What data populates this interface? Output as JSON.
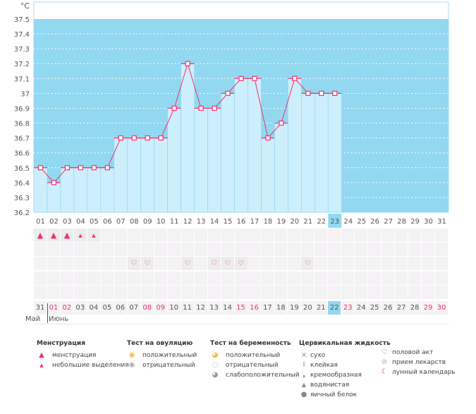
{
  "chart_data": {
    "type": "line",
    "unit": "°C",
    "yticks": [
      "37.5",
      "37.4",
      "37.3",
      "37.2",
      "37.1",
      "37",
      "36.9",
      "36.8",
      "36.7",
      "36.6",
      "36.5",
      "36.4",
      "36.3",
      "36.2"
    ],
    "ylim": [
      36.2,
      37.5
    ],
    "cycle_days": [
      "01",
      "02",
      "03",
      "04",
      "05",
      "06",
      "07",
      "08",
      "09",
      "10",
      "11",
      "12",
      "13",
      "14",
      "15",
      "16",
      "17",
      "18",
      "19",
      "20",
      "21",
      "22",
      "23",
      "24",
      "25",
      "26",
      "27",
      "28",
      "29",
      "30",
      "31"
    ],
    "temperatures": [
      36.5,
      36.4,
      36.5,
      36.5,
      36.5,
      36.5,
      36.7,
      36.7,
      36.7,
      36.7,
      36.9,
      37.2,
      36.9,
      36.9,
      37.0,
      37.1,
      37.1,
      36.7,
      36.8,
      37.1,
      37.0,
      37.0,
      37.0
    ],
    "current_day_index": 22,
    "colors": {
      "bg": "#92d8f1",
      "bar": "#cdeefb",
      "line": "#f0336e"
    }
  },
  "menstruation": [
    "heavy",
    "heavy",
    "heavy",
    "light",
    "light"
  ],
  "intercourse_days": [
    7,
    8,
    11,
    13,
    14,
    15,
    20
  ],
  "dates": [
    "31",
    "01",
    "02",
    "03",
    "04",
    "05",
    "06",
    "07",
    "08",
    "09",
    "10",
    "11",
    "12",
    "13",
    "14",
    "15",
    "16",
    "17",
    "18",
    "19",
    "20",
    "21",
    "22",
    "23",
    "24",
    "25",
    "26",
    "27",
    "28",
    "29",
    "30"
  ],
  "weekend_idx": [
    1,
    2,
    8,
    9,
    15,
    16,
    23,
    29,
    30
  ],
  "months": {
    "may": "Май",
    "june": "Июнь"
  },
  "legend": {
    "menstruation": {
      "title": "Менструация",
      "items": [
        "менструация",
        "небольшие выделения"
      ]
    },
    "ovulation": {
      "title": "Тест на овуляцию",
      "items": [
        "положительный",
        "отрицательный"
      ]
    },
    "pregnancy": {
      "title": "Тест на беременность",
      "items": [
        "положительный",
        "отрицательный",
        "слабоположительный"
      ]
    },
    "cervical": {
      "title": "Цервикальная жидкость",
      "items": [
        "сухо",
        "клейкая",
        "кремообразная",
        "водянистая",
        "яичный белок"
      ]
    },
    "other": {
      "items": [
        "половой акт",
        "прием лекарств",
        "лунный календарь"
      ]
    }
  }
}
